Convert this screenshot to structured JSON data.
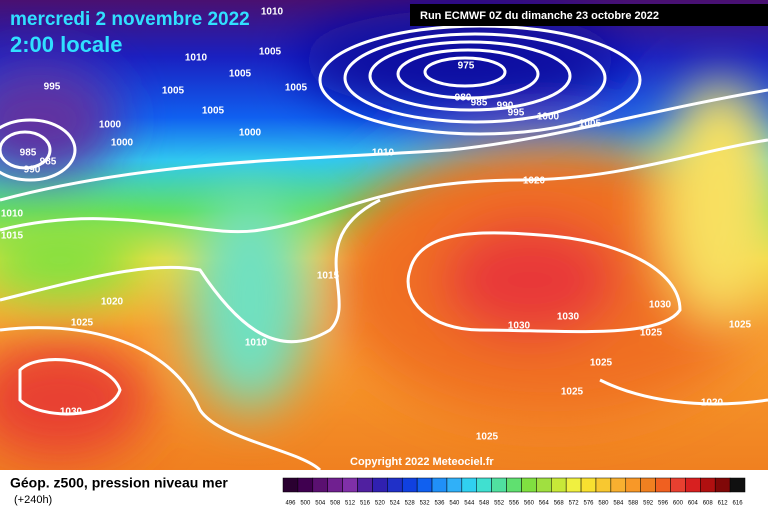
{
  "header": {
    "date": "mercredi 2 novembre 2022",
    "time": "2:00 locale",
    "run": "Run ECMWF 0Z du dimanche 23 octobre 2022"
  },
  "copyright": "Copyright 2022 Meteociel.fr",
  "footer": {
    "title": "Géop. z500, pression niveau mer",
    "lead": "(+240h)"
  },
  "colorbar": {
    "labels": [
      "496",
      "500",
      "504",
      "508",
      "512",
      "516",
      "520",
      "524",
      "528",
      "532",
      "536",
      "540",
      "544",
      "548",
      "552",
      "556",
      "560",
      "564",
      "568",
      "572",
      "576",
      "580",
      "584",
      "588",
      "592",
      "596",
      "600",
      "604",
      "608",
      "612",
      "616"
    ]
  },
  "isobar_labels": [
    "1010",
    "1005",
    "1010",
    "1005",
    "995",
    "1005",
    "1005",
    "975",
    "980",
    "985",
    "990",
    "995",
    "1000",
    "1005",
    "1005",
    "1000",
    "1000",
    "1000",
    "985",
    "985",
    "990",
    "1010",
    "1020",
    "1010",
    "1015",
    "1015",
    "1020",
    "1030",
    "1025",
    "1030",
    "1030",
    "1025",
    "1010",
    "1025",
    "1025",
    "1025",
    "1020",
    "1030",
    "1025"
  ]
}
